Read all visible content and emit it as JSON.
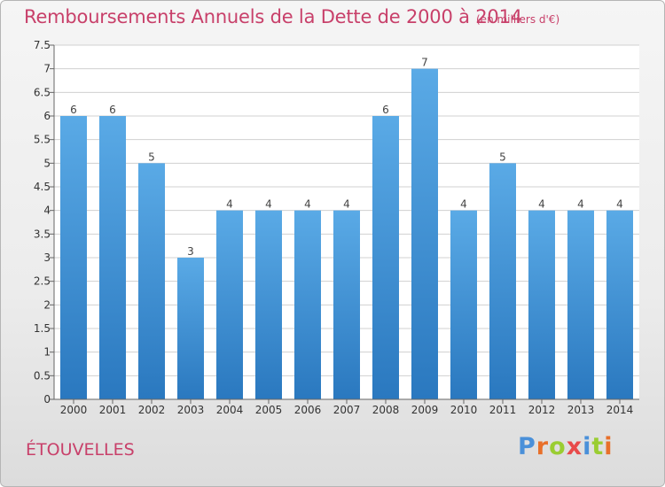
{
  "header": {
    "title": "Remboursements Annuels de la Dette de 2000 à 2014",
    "subtitle": "(en milliers d'€)"
  },
  "commune": "ÉTOUVELLES",
  "logo": {
    "text": "Proxiti",
    "letters": [
      "P",
      "r",
      "o",
      "x",
      "i",
      "t",
      "i"
    ]
  },
  "colors": {
    "title": "#c8406a",
    "bar_top": "#5aaae6",
    "bar_bottom": "#2a78bf",
    "grid": "#d0d0d0"
  },
  "chart_data": {
    "type": "bar",
    "title": "Remboursements Annuels de la Dette de 2000 à 2014",
    "subtitle": "(en milliers d'€)",
    "categories": [
      "2000",
      "2001",
      "2002",
      "2003",
      "2004",
      "2005",
      "2006",
      "2007",
      "2008",
      "2009",
      "2010",
      "2011",
      "2012",
      "2013",
      "2014"
    ],
    "values": [
      6,
      6,
      5,
      3,
      4,
      4,
      4,
      4,
      6,
      7,
      4,
      5,
      4,
      4,
      4
    ],
    "data_labels": [
      "6",
      "6",
      "5",
      "3",
      "4",
      "4",
      "4",
      "4",
      "6",
      "7",
      "4",
      "5",
      "4",
      "4",
      "4"
    ],
    "ylim": [
      0,
      7.5
    ],
    "yticks": [
      0,
      0.5,
      1,
      1.5,
      2,
      2.5,
      3,
      3.5,
      4,
      4.5,
      5,
      5.5,
      6,
      6.5,
      7,
      7.5
    ],
    "ytick_labels": [
      "0",
      "0.5",
      "1",
      "1.5",
      "2",
      "2.5",
      "3",
      "3.5",
      "4",
      "4.5",
      "5",
      "5.5",
      "6",
      "6.5",
      "7",
      "7.5"
    ],
    "grid": true,
    "xlabel": "",
    "ylabel": ""
  }
}
